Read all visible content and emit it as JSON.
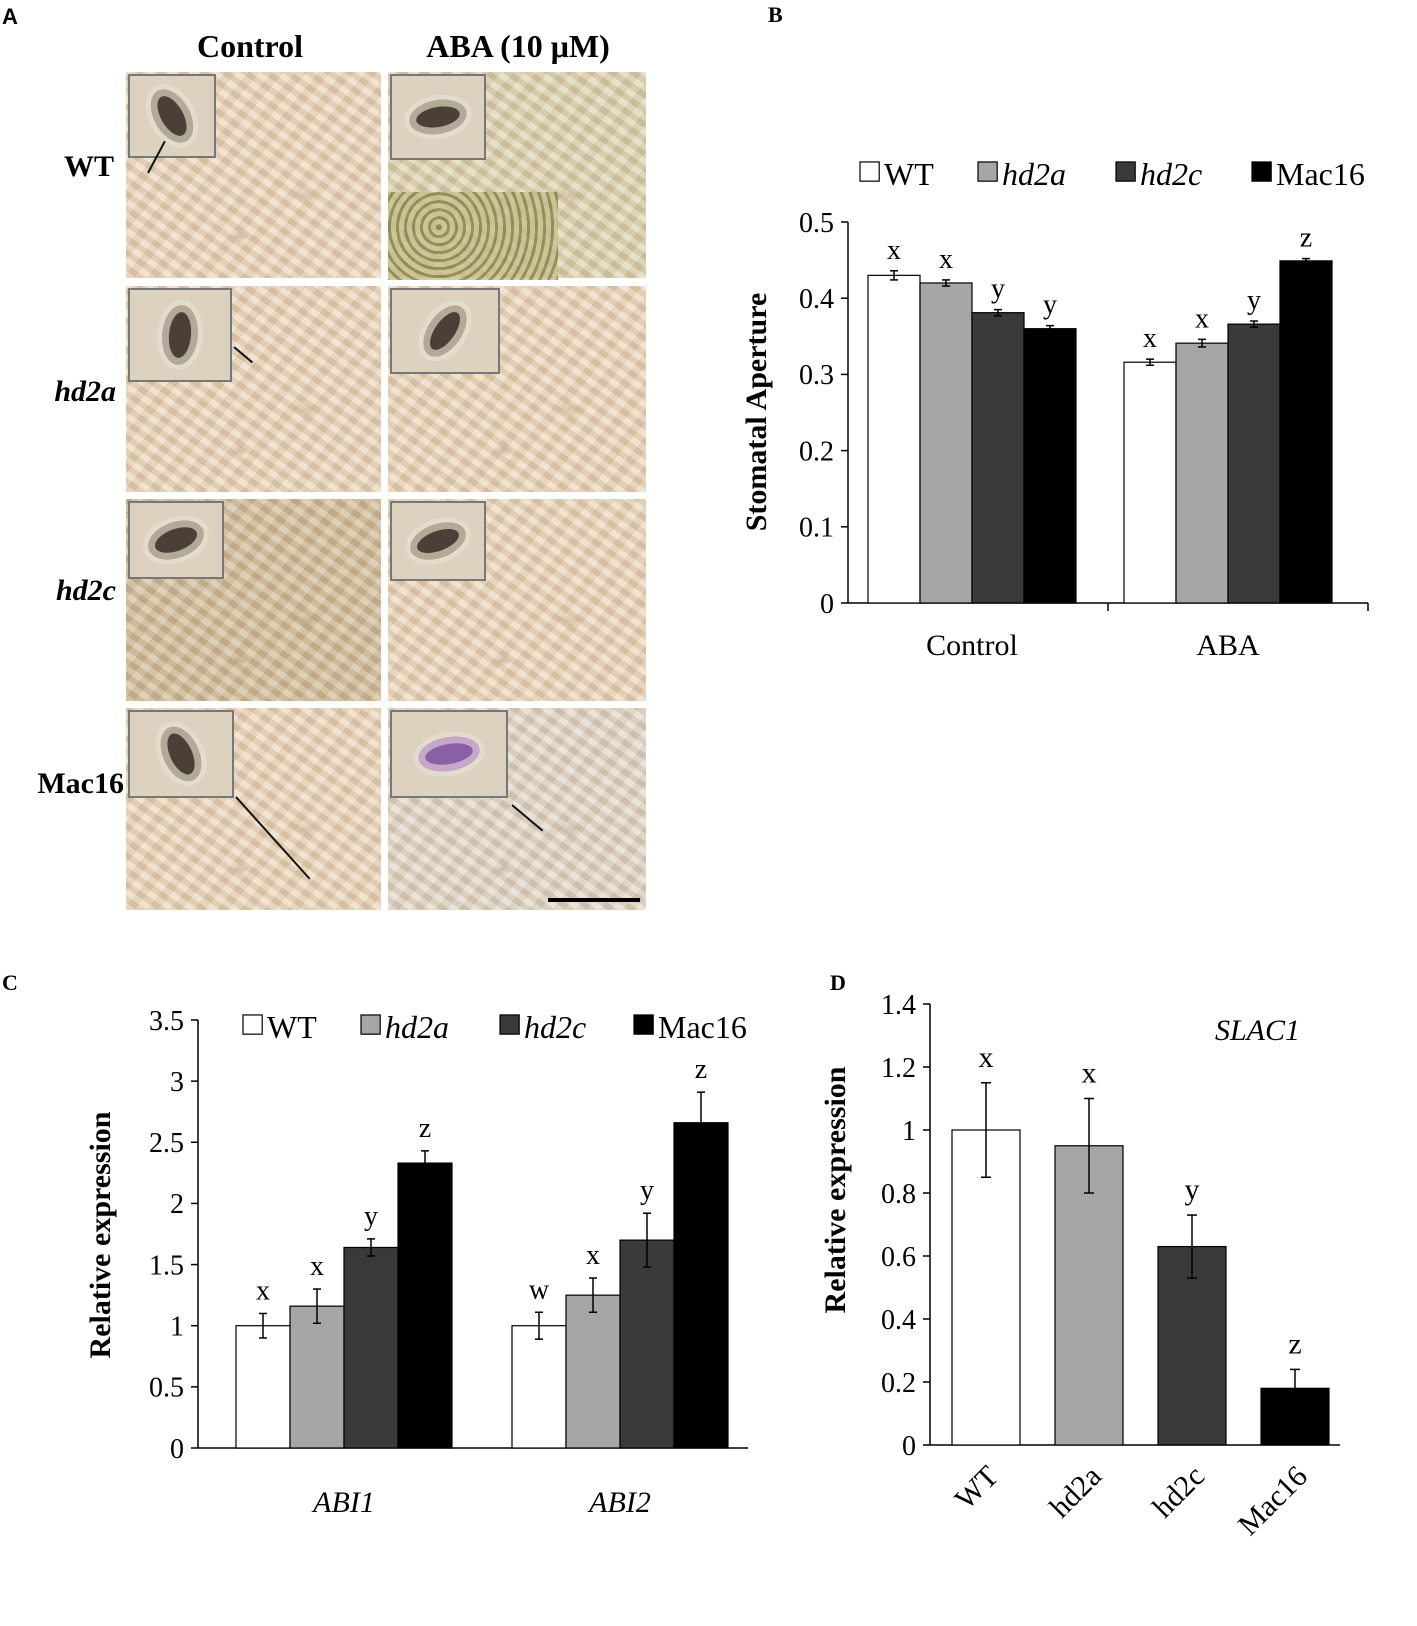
{
  "panel_a": {
    "letter": "A",
    "columns": [
      "Control",
      "ABA (10 μM)"
    ],
    "rows": [
      "WT",
      "hd2a",
      "hd2c",
      "Mac16"
    ]
  },
  "chart_data": [
    {
      "panel": "B",
      "type": "bar",
      "categories": [
        "Control",
        "ABA"
      ],
      "series": [
        {
          "name": "WT",
          "values": [
            0.43,
            0.316
          ],
          "errors": [
            0.006,
            0.004
          ],
          "letters": [
            "x",
            "x"
          ],
          "color": "#ffffff"
        },
        {
          "name": "hd2a",
          "values": [
            0.42,
            0.341
          ],
          "errors": [
            0.004,
            0.005
          ],
          "letters": [
            "x",
            "x"
          ],
          "color": "#a6a6a6"
        },
        {
          "name": "hd2c",
          "values": [
            0.381,
            0.366
          ],
          "errors": [
            0.004,
            0.004
          ],
          "letters": [
            "y",
            "y"
          ],
          "color": "#3a3a3a"
        },
        {
          "name": "Mac16",
          "values": [
            0.36,
            0.449
          ],
          "errors": [
            0.004,
            0.003
          ],
          "letters": [
            "y",
            "z"
          ],
          "color": "#000000"
        }
      ],
      "ylabel": "Stomatal Aperture",
      "ylim": [
        0,
        0.5
      ],
      "yticks": [
        "0",
        "0.1",
        "0.2",
        "0.3",
        "0.4",
        "0.5"
      ],
      "legend": "top"
    },
    {
      "panel": "C",
      "type": "bar",
      "categories": [
        "ABI1",
        "ABI2"
      ],
      "series": [
        {
          "name": "WT",
          "values": [
            1.0,
            1.0
          ],
          "errors": [
            0.1,
            0.11
          ],
          "letters": [
            "x",
            "w"
          ],
          "color": "#ffffff"
        },
        {
          "name": "hd2a",
          "values": [
            1.16,
            1.25
          ],
          "errors": [
            0.14,
            0.14
          ],
          "letters": [
            "x",
            "x"
          ],
          "color": "#a6a6a6"
        },
        {
          "name": "hd2c",
          "values": [
            1.64,
            1.7
          ],
          "errors": [
            0.07,
            0.22
          ],
          "letters": [
            "y",
            "y"
          ],
          "color": "#3a3a3a"
        },
        {
          "name": "Mac16",
          "values": [
            2.33,
            2.66
          ],
          "errors": [
            0.1,
            0.25
          ],
          "letters": [
            "z",
            "z"
          ],
          "color": "#000000"
        }
      ],
      "ylabel": "Relative expression",
      "ylim": [
        0,
        3.5
      ],
      "yticks": [
        "0",
        "0.5",
        "1",
        "1.5",
        "2",
        "2.5",
        "3",
        "3.5"
      ],
      "legend": "top"
    },
    {
      "panel": "D",
      "type": "bar",
      "annotation": "SLAC1",
      "categories": [
        "WT",
        "hd2a",
        "hd2c",
        "Mac16"
      ],
      "values": [
        1.0,
        0.95,
        0.63,
        0.18
      ],
      "errors": [
        0.15,
        0.15,
        0.1,
        0.06
      ],
      "letters": [
        "x",
        "x",
        "y",
        "z"
      ],
      "colors": [
        "#ffffff",
        "#a6a6a6",
        "#3a3a3a",
        "#000000"
      ],
      "ylabel": "Relative expression",
      "ylim": [
        0,
        1.4
      ],
      "yticks": [
        "0",
        "0.2",
        "0.4",
        "0.6",
        "0.8",
        "1",
        "1.2",
        "1.4"
      ]
    }
  ]
}
